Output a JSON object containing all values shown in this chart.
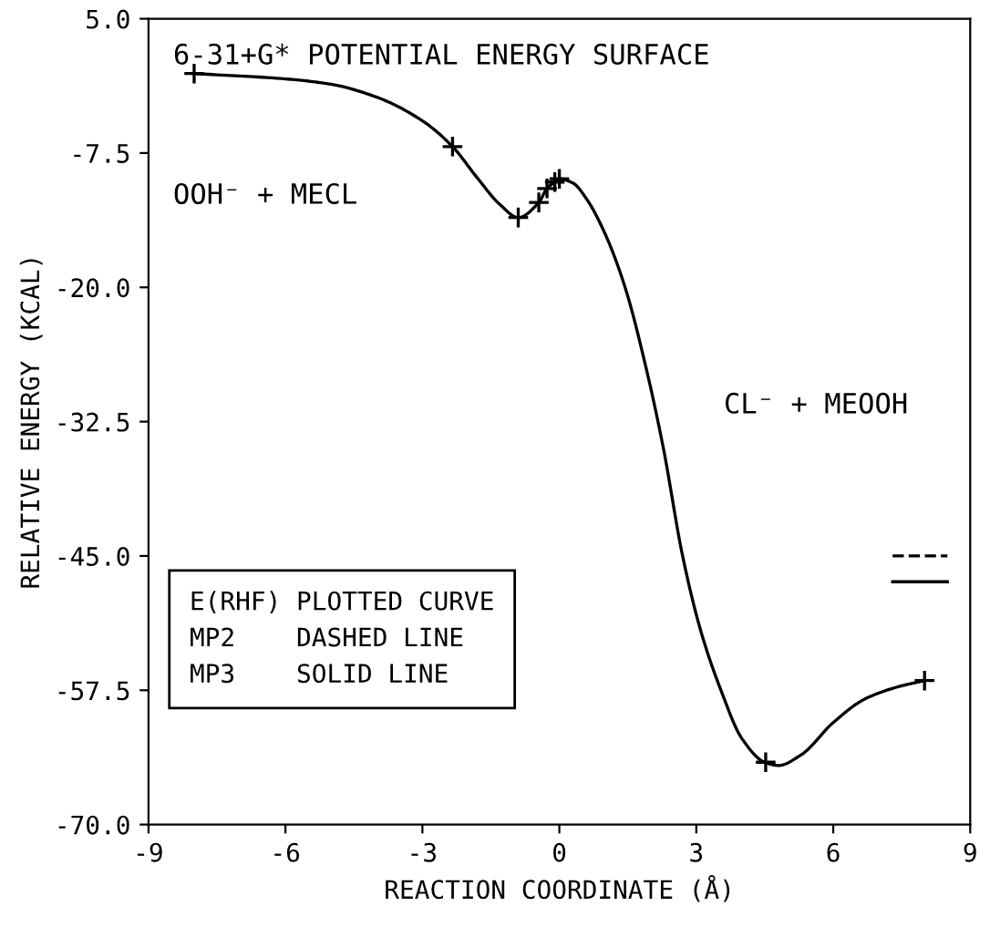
{
  "chart_data": {
    "type": "line",
    "xlabel": "REACTION COORDINATE (Å)",
    "ylabel": "RELATIVE ENERGY (KCAL)",
    "xlim": [
      -9,
      9
    ],
    "xticks": [
      -9,
      -6,
      -3,
      0,
      3,
      6,
      9
    ],
    "ylim": [
      -70,
      5
    ],
    "yticks": [
      {
        "value": 5,
        "label": "5.0"
      },
      -7.5,
      {
        "value": -20,
        "label": "-20.0"
      },
      -32.5,
      {
        "value": -45,
        "label": "-45.0"
      },
      -57.5,
      {
        "value": -70,
        "label": "-70.0"
      }
    ],
    "grid": false,
    "legend": false,
    "series": [
      {
        "color": "#000000",
        "marker": "none",
        "line_style": "solid",
        "x": [
          -8,
          -6,
          -5,
          -4,
          -3,
          -2.34,
          -1.8,
          -1.3,
          -0.9,
          -0.45,
          -0.27,
          -0.1,
          0,
          0.3,
          0.6,
          1.0,
          1.44,
          1.9,
          2.28,
          2.7,
          3.1,
          3.54,
          4.0,
          4.5,
          4.8,
          5.3,
          6.0,
          6.7,
          7.4,
          8.0
        ],
        "values": [
          -0.1,
          -0.6,
          -1.1,
          -2.3,
          -4.5,
          -6.9,
          -9.8,
          -12.3,
          -13.5,
          -12.1,
          -10.8,
          -10.2,
          -9.9,
          -10.3,
          -11.8,
          -15,
          -20,
          -27.5,
          -35,
          -45,
          -52,
          -57.5,
          -62,
          -64.2,
          -64.5,
          -63.5,
          -60.5,
          -58.3,
          -57.2,
          -56.6
        ]
      },
      {
        "type": "scatter",
        "color": "#000000",
        "marker": "cross",
        "x": [
          -8,
          -2.34,
          -0.9,
          -0.45,
          -0.27,
          -0.1,
          0,
          4.52,
          8.0
        ],
        "values": [
          -0.1,
          -6.9,
          -13.5,
          -12.1,
          -10.8,
          -10.2,
          -9.9,
          -64.2,
          -56.6
        ]
      },
      {
        "color": "#000000",
        "marker": "none",
        "line_style": "dashed",
        "x": [
          7.3,
          8.5
        ],
        "values": [
          -45.0,
          -45.0
        ]
      },
      {
        "color": "#000000",
        "marker": "none",
        "line_style": "solid",
        "x": [
          7.3,
          8.5
        ],
        "values": [
          -47.4,
          -47.4
        ]
      }
    ],
    "annotations": [
      "6-31+G* POTENTIAL ENERGY SURFACE",
      "OOH⁻ + MECL",
      "CL⁻ + MEOOH",
      "E(RHF) PLOTTED CURVE\nMP2    DASHED LINE\nMP3    SOLID LINE"
    ]
  }
}
